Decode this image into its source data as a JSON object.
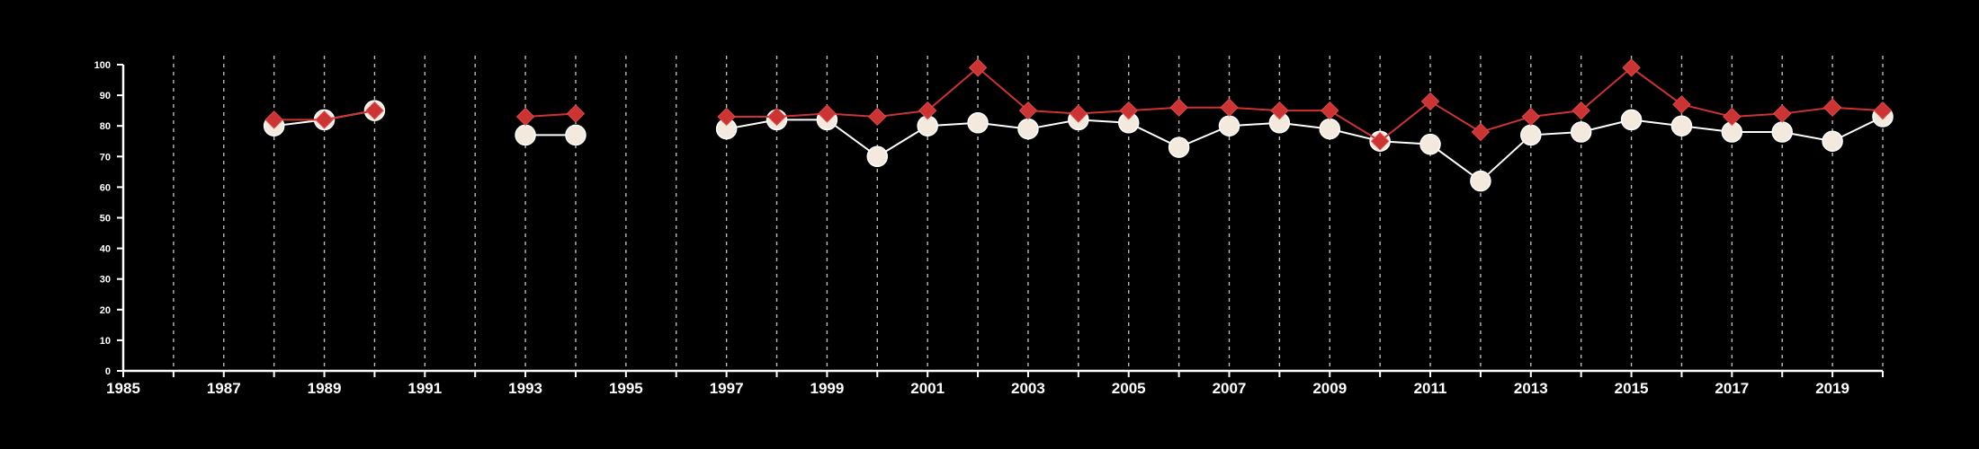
{
  "chart_data": {
    "type": "line",
    "x_range": [
      1985,
      2020
    ],
    "ylim": [
      0,
      100
    ],
    "x_tick_labels": [
      "1985",
      "1987",
      "1989",
      "1991",
      "1993",
      "1995",
      "1997",
      "1999",
      "2001",
      "2003",
      "2005",
      "2007",
      "2009",
      "2011",
      "2013",
      "2015",
      "2017",
      "2019"
    ],
    "x_tick_positions": [
      1985,
      1987,
      1989,
      1991,
      1993,
      1995,
      1997,
      1999,
      2001,
      2003,
      2005,
      2007,
      2009,
      2011,
      2013,
      2015,
      2017,
      2019
    ],
    "y_tick_labels": [
      "0",
      "10",
      "20",
      "30",
      "40",
      "50",
      "60",
      "70",
      "80",
      "90",
      "100"
    ],
    "y_tick_positions": [
      0,
      10,
      20,
      30,
      40,
      50,
      60,
      70,
      80,
      90,
      100
    ],
    "vertical_gridlines": [
      1986,
      1987,
      1988,
      1989,
      1990,
      1991,
      1992,
      1993,
      1994,
      1995,
      1996,
      1997,
      1998,
      1999,
      2000,
      2001,
      2002,
      2003,
      2004,
      2005,
      2006,
      2007,
      2008,
      2009,
      2010,
      2011,
      2012,
      2013,
      2014,
      2015,
      2016,
      2017,
      2018,
      2019,
      2020
    ],
    "grid": "vertical dashed",
    "series": [
      {
        "marker": "circle",
        "color": "#ffffff",
        "fill": "#f3e9dc",
        "points": [
          [
            1988,
            80
          ],
          [
            1989,
            82
          ],
          [
            1990,
            85
          ],
          [
            1991,
            null
          ],
          [
            1992,
            null
          ],
          [
            1993,
            77
          ],
          [
            1994,
            77
          ],
          [
            1995,
            null
          ],
          [
            1996,
            null
          ],
          [
            1997,
            79
          ],
          [
            1998,
            82
          ],
          [
            1999,
            82
          ],
          [
            2000,
            70
          ],
          [
            2001,
            80
          ],
          [
            2002,
            81
          ],
          [
            2003,
            79
          ],
          [
            2004,
            82
          ],
          [
            2005,
            81
          ],
          [
            2006,
            73
          ],
          [
            2007,
            80
          ],
          [
            2008,
            81
          ],
          [
            2009,
            79
          ],
          [
            2010,
            75
          ],
          [
            2011,
            74
          ],
          [
            2012,
            62
          ],
          [
            2013,
            77
          ],
          [
            2014,
            78
          ],
          [
            2015,
            82
          ],
          [
            2016,
            80
          ],
          [
            2017,
            78
          ],
          [
            2018,
            78
          ],
          [
            2019,
            75
          ],
          [
            2020,
            83
          ]
        ]
      },
      {
        "marker": "diamond",
        "color": "#cc3333",
        "fill": "#cc3333",
        "points": [
          [
            1988,
            82
          ],
          [
            1989,
            82
          ],
          [
            1990,
            85
          ],
          [
            1991,
            null
          ],
          [
            1992,
            null
          ],
          [
            1993,
            83
          ],
          [
            1994,
            84
          ],
          [
            1995,
            null
          ],
          [
            1996,
            null
          ],
          [
            1997,
            83
          ],
          [
            1998,
            83
          ],
          [
            1999,
            84
          ],
          [
            2000,
            83
          ],
          [
            2001,
            85
          ],
          [
            2002,
            99
          ],
          [
            2003,
            85
          ],
          [
            2004,
            84
          ],
          [
            2005,
            85
          ],
          [
            2006,
            86
          ],
          [
            2007,
            86
          ],
          [
            2008,
            85
          ],
          [
            2009,
            85
          ],
          [
            2010,
            75
          ],
          [
            2011,
            88
          ],
          [
            2012,
            78
          ],
          [
            2013,
            83
          ],
          [
            2014,
            85
          ],
          [
            2015,
            99
          ],
          [
            2016,
            87
          ],
          [
            2017,
            83
          ],
          [
            2018,
            84
          ],
          [
            2019,
            86
          ],
          [
            2020,
            85
          ]
        ]
      }
    ]
  }
}
